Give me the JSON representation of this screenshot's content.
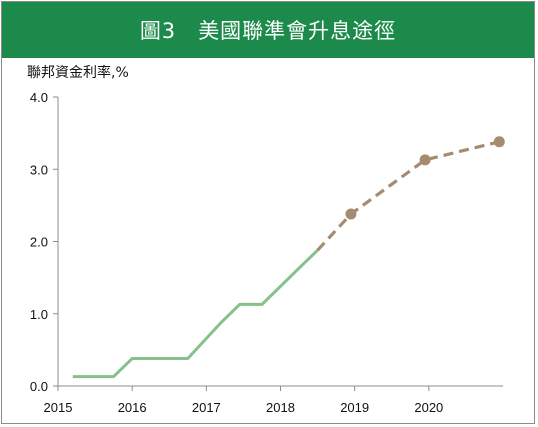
{
  "header": {
    "figure_no": "圖3",
    "title": "美國聯準會升息途徑"
  },
  "colors": {
    "banner": "#1b8a4a",
    "actual_line": "#86c08a",
    "projection_line": "#a58b70",
    "axis": "#8c8c8c"
  },
  "chart_data": {
    "type": "line",
    "title": "美國聯準會升息途徑",
    "ylabel": "聯邦資金利率,%",
    "xlabel": "",
    "ylim": [
      0,
      4.0
    ],
    "xlim": [
      2015,
      2021
    ],
    "yticks": [
      "0.0",
      "1.0",
      "2.0",
      "3.0",
      "4.0"
    ],
    "xticks": [
      "2015",
      "2016",
      "2017",
      "2018",
      "2019",
      "2020"
    ],
    "grid": false,
    "series": [
      {
        "style": "solid",
        "points": [
          [
            2015.2,
            0.13
          ],
          [
            2015.75,
            0.13
          ],
          [
            2016.0,
            0.38
          ],
          [
            2016.75,
            0.38
          ],
          [
            2017.2,
            0.88
          ],
          [
            2017.45,
            1.13
          ],
          [
            2017.75,
            1.13
          ],
          [
            2018.25,
            1.63
          ],
          [
            2018.5,
            1.88
          ]
        ]
      },
      {
        "style": "dashed",
        "points": [
          [
            2018.5,
            1.88
          ],
          [
            2018.95,
            2.38
          ],
          [
            2019.95,
            3.13
          ],
          [
            2020.95,
            3.38
          ]
        ],
        "markers": [
          [
            2018.95,
            2.38
          ],
          [
            2019.95,
            3.13
          ],
          [
            2020.95,
            3.38
          ]
        ]
      }
    ]
  }
}
